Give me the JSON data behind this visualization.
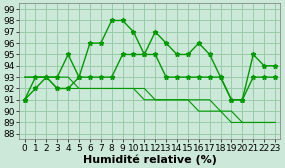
{
  "xlabel": "Humidité relative (%)",
  "bg_color": "#cce8d8",
  "grid_color": "#99ccaa",
  "line_color": "#009900",
  "xlim": [
    -0.5,
    23.5
  ],
  "ylim": [
    87.5,
    99.5
  ],
  "yticks": [
    88,
    89,
    90,
    91,
    92,
    93,
    94,
    95,
    96,
    97,
    98,
    99
  ],
  "xticks": [
    0,
    1,
    2,
    3,
    4,
    5,
    6,
    7,
    8,
    9,
    10,
    11,
    12,
    13,
    14,
    15,
    16,
    17,
    18,
    19,
    20,
    21,
    22,
    23
  ],
  "series": [
    [
      91,
      92,
      93,
      93,
      95,
      93,
      96,
      96,
      98,
      98,
      97,
      95,
      97,
      96,
      95,
      95,
      96,
      95,
      93,
      91,
      91,
      95,
      94,
      94
    ],
    [
      91,
      93,
      93,
      92,
      92,
      93,
      93,
      93,
      93,
      95,
      95,
      95,
      95,
      93,
      93,
      93,
      93,
      93,
      93,
      91,
      91,
      93,
      93,
      93
    ],
    [
      93,
      93,
      93,
      92,
      92,
      92,
      92,
      92,
      92,
      92,
      92,
      92,
      91,
      91,
      91,
      91,
      91,
      91,
      90,
      90,
      89,
      89,
      89,
      89
    ],
    [
      93,
      93,
      93,
      93,
      93,
      92,
      92,
      92,
      92,
      92,
      92,
      91,
      91,
      91,
      91,
      91,
      90,
      90,
      90,
      89,
      89,
      89,
      89,
      89
    ]
  ],
  "series_markers": [
    true,
    true,
    false,
    false
  ],
  "xlabel_fontsize": 8,
  "tick_fontsize": 6.5,
  "lw_marker": 1.0,
  "lw_plain": 0.8,
  "markersize": 3.5
}
